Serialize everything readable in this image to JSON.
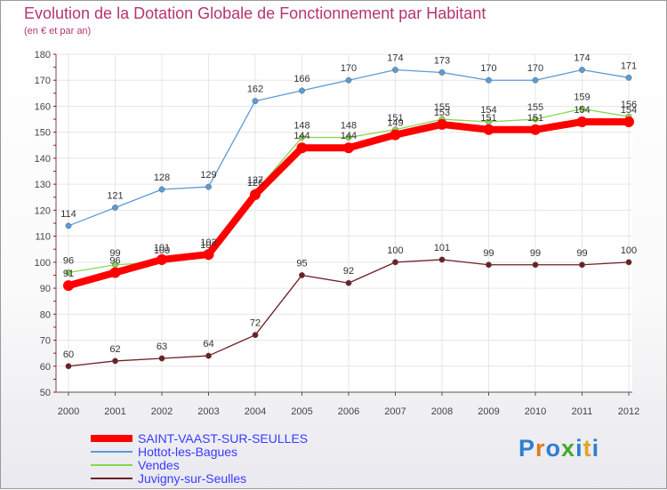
{
  "title": "Evolution de la Dotation Globale de Fonctionnement par Habitant",
  "subtitle": "(en € et par an)",
  "logo": "Proxiti",
  "colors": {
    "title": "#b4356e",
    "legend_text": "#3a3aff"
  },
  "chart_data": {
    "type": "line",
    "title": "Evolution de la Dotation Globale de Fonctionnement par Habitant",
    "subtitle": "(en € et par an)",
    "xlabel": "",
    "ylabel": "",
    "categories": [
      "2000",
      "2001",
      "2002",
      "2003",
      "2004",
      "2005",
      "2006",
      "2007",
      "2008",
      "2009",
      "2010",
      "2011",
      "2012"
    ],
    "ylim": [
      50,
      180
    ],
    "yticks": [
      50,
      60,
      70,
      80,
      90,
      100,
      110,
      120,
      130,
      140,
      150,
      160,
      170,
      180
    ],
    "grid": true,
    "legend_position": "bottom-left",
    "series": [
      {
        "name": "Juvigny-sur-Seulles",
        "color": "#6e1f26",
        "values": [
          60,
          62,
          63,
          64,
          72,
          95,
          92,
          100,
          101,
          99,
          99,
          99,
          100
        ],
        "labels": [
          "60",
          "62",
          "63",
          "64",
          "72",
          "95",
          "92",
          "100",
          "101",
          "99",
          "99",
          "99",
          "100"
        ]
      },
      {
        "name": "Vendes",
        "color": "#88d650",
        "values": [
          96,
          99,
          100,
          102,
          127,
          148,
          148,
          151,
          155,
          154,
          155,
          159,
          156
        ],
        "labels": [
          "96",
          "99",
          "100",
          "102",
          "127",
          "148",
          "148",
          "151",
          "155",
          "154",
          "155",
          "159",
          "156"
        ]
      },
      {
        "name": "Hottot-les-Bagues",
        "color": "#5b9bd5",
        "values": [
          114,
          121,
          128,
          129,
          162,
          166,
          170,
          174,
          173,
          170,
          170,
          174,
          171
        ],
        "labels": [
          "114",
          "121",
          "128",
          "129",
          "162",
          "166",
          "170",
          "174",
          "173",
          "170",
          "170",
          "174",
          "171"
        ]
      },
      {
        "name": "SAINT-VAAST-SUR-SEULLES",
        "color": "#ff0000",
        "values": [
          91,
          96,
          101,
          103,
          126,
          144,
          144,
          149,
          153,
          151,
          151,
          154,
          154
        ],
        "labels": [
          "91",
          "96",
          "101",
          "103",
          "126",
          "144",
          "144",
          "149",
          "153",
          "151",
          "151",
          "154",
          "154"
        ]
      }
    ],
    "legend": [
      "SAINT-VAAST-SUR-SEULLES",
      "Hottot-les-Bagues",
      "Vendes",
      "Juvigny-sur-Seulles"
    ]
  }
}
